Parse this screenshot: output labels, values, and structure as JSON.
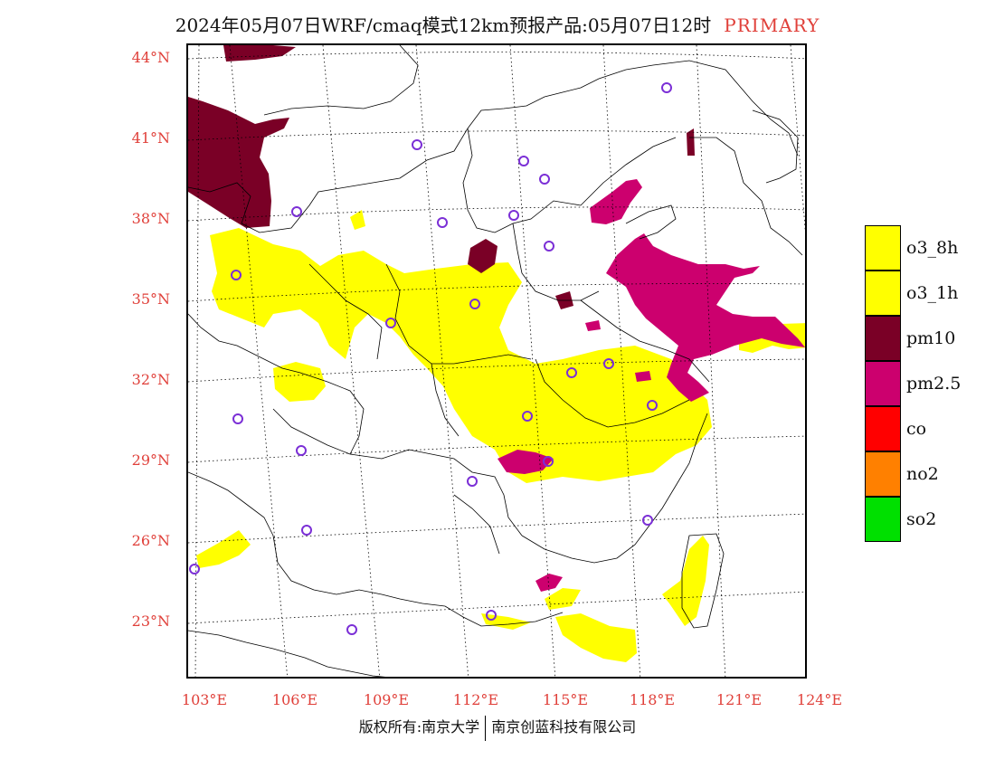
{
  "title": {
    "main": "2024年05月07日WRF/cmaq模式12km预报产品:05月07日12时",
    "tag": "PRIMARY"
  },
  "map": {
    "lat_labels": [
      "44°N",
      "41°N",
      "38°N",
      "35°N",
      "32°N",
      "29°N",
      "26°N",
      "23°N"
    ],
    "lon_labels": [
      "103°E",
      "106°E",
      "109°E",
      "112°E",
      "115°E",
      "118°E",
      "121°E",
      "124°E"
    ]
  },
  "legend": {
    "items": [
      {
        "label": "o3_8h",
        "color": "#ffff00"
      },
      {
        "label": "o3_1h",
        "color": "#ffff00"
      },
      {
        "label": "pm10",
        "color": "#7a0026"
      },
      {
        "label": "pm2.5",
        "color": "#cc006e"
      },
      {
        "label": "co",
        "color": "#ff0000"
      },
      {
        "label": "no2",
        "color": "#ff8000"
      },
      {
        "label": "so2",
        "color": "#00e000"
      }
    ]
  },
  "footer": {
    "left": "版权所有:南京大学",
    "right": "南京创蓝科技有限公司"
  },
  "colors": {
    "o3": "#ffff00",
    "pm10": "#7a0026",
    "pm25": "#cc006e",
    "station_marker": "#7b2fd6",
    "axis_label": "#e0403a"
  }
}
